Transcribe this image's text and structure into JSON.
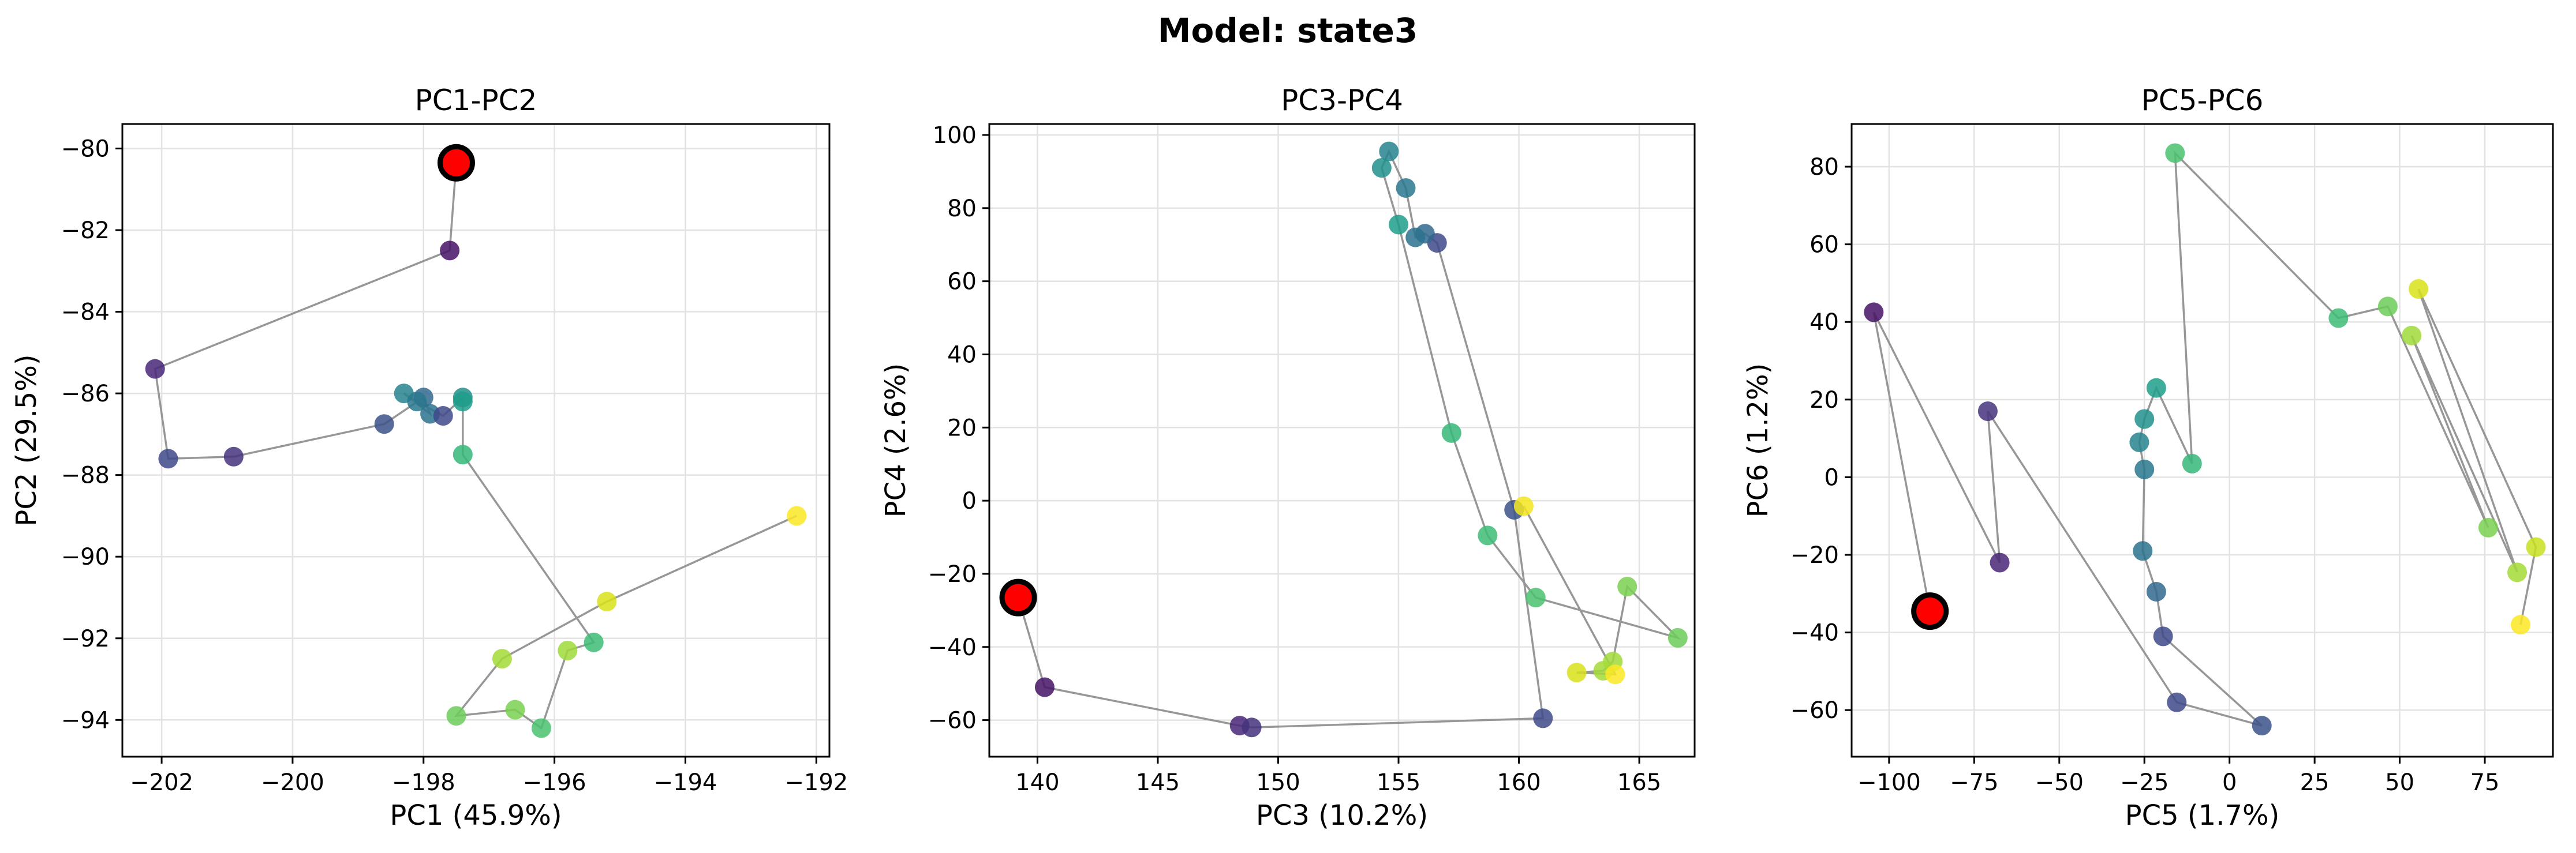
{
  "figure": {
    "title": "Model: state3"
  },
  "chart_data": [
    {
      "type": "scatter",
      "title": "PC1-PC2",
      "xlabel": "PC1 (45.9%)",
      "ylabel": "PC2 (29.5%)",
      "xlim": [
        -202.6,
        -191.8
      ],
      "ylim": [
        -94.9,
        -79.4
      ],
      "xticks": [
        -202,
        -200,
        -198,
        -196,
        -194,
        -192
      ],
      "yticks": [
        -94,
        -92,
        -90,
        -88,
        -86,
        -84,
        -82,
        -80
      ],
      "start": {
        "x": -197.5,
        "y": -80.35
      },
      "points": [
        {
          "x": -197.6,
          "y": -82.5,
          "c": "#471365"
        },
        {
          "x": -202.1,
          "y": -85.4,
          "c": "#482677"
        },
        {
          "x": -201.9,
          "y": -87.6,
          "c": "#3e4a89"
        },
        {
          "x": -200.9,
          "y": -87.55,
          "c": "#45337d"
        },
        {
          "x": -198.6,
          "y": -86.75,
          "c": "#3b528b"
        },
        {
          "x": -198.0,
          "y": -86.1,
          "c": "#31688e"
        },
        {
          "x": -197.9,
          "y": -86.5,
          "c": "#2c728e"
        },
        {
          "x": -198.3,
          "y": -86.0,
          "c": "#26828e"
        },
        {
          "x": -198.1,
          "y": -86.2,
          "c": "#2a788e"
        },
        {
          "x": -197.7,
          "y": -86.55,
          "c": "#3e4989"
        },
        {
          "x": -197.4,
          "y": -86.1,
          "c": "#21918c"
        },
        {
          "x": -197.4,
          "y": -86.2,
          "c": "#1f9e89"
        },
        {
          "x": -197.4,
          "y": -87.5,
          "c": "#35b779"
        },
        {
          "x": -195.4,
          "y": -92.1,
          "c": "#3dbc74"
        },
        {
          "x": -195.8,
          "y": -92.3,
          "c": "#a0da39"
        },
        {
          "x": -196.2,
          "y": -94.2,
          "c": "#4ac16d"
        },
        {
          "x": -196.6,
          "y": -93.75,
          "c": "#7ad151"
        },
        {
          "x": -197.5,
          "y": -93.9,
          "c": "#6ccd5a"
        },
        {
          "x": -196.8,
          "y": -92.5,
          "c": "#a5db36"
        },
        {
          "x": -195.2,
          "y": -91.1,
          "c": "#d8e219"
        },
        {
          "x": -192.3,
          "y": -89.0,
          "c": "#fde725"
        }
      ]
    },
    {
      "type": "scatter",
      "title": "PC3-PC4",
      "xlabel": "PC3 (10.2%)",
      "ylabel": "PC4 (2.6%)",
      "xlim": [
        138,
        167.3
      ],
      "ylim": [
        -70,
        103
      ],
      "xticks": [
        140,
        145,
        150,
        155,
        160,
        165
      ],
      "yticks": [
        -60,
        -40,
        -20,
        0,
        20,
        40,
        60,
        80,
        100
      ],
      "start": {
        "x": 139.2,
        "y": -26.5
      },
      "points": [
        {
          "x": 140.3,
          "y": -51,
          "c": "#471365"
        },
        {
          "x": 148.4,
          "y": -61.5,
          "c": "#482677"
        },
        {
          "x": 148.9,
          "y": -62,
          "c": "#45337d"
        },
        {
          "x": 161.0,
          "y": -59.5,
          "c": "#3e4a89"
        },
        {
          "x": 159.8,
          "y": -2.5,
          "c": "#3b528b"
        },
        {
          "x": 156.6,
          "y": 70.5,
          "c": "#3e4989"
        },
        {
          "x": 156.1,
          "y": 73,
          "c": "#31688e"
        },
        {
          "x": 155.7,
          "y": 72,
          "c": "#2c728e"
        },
        {
          "x": 155.3,
          "y": 85.5,
          "c": "#2a788e"
        },
        {
          "x": 154.6,
          "y": 95.5,
          "c": "#26828e"
        },
        {
          "x": 154.3,
          "y": 91,
          "c": "#21918c"
        },
        {
          "x": 155.0,
          "y": 75.5,
          "c": "#1f9e89"
        },
        {
          "x": 157.2,
          "y": 18.5,
          "c": "#35b779"
        },
        {
          "x": 158.7,
          "y": -9.5,
          "c": "#3dbc74"
        },
        {
          "x": 160.7,
          "y": -26.5,
          "c": "#4ac16d"
        },
        {
          "x": 166.6,
          "y": -37.5,
          "c": "#6ccd5a"
        },
        {
          "x": 164.5,
          "y": -23.5,
          "c": "#7ad151"
        },
        {
          "x": 163.9,
          "y": -44,
          "c": "#a0da39"
        },
        {
          "x": 163.5,
          "y": -46.5,
          "c": "#a5db36"
        },
        {
          "x": 162.4,
          "y": -47,
          "c": "#d8e219"
        },
        {
          "x": 164.0,
          "y": -47.5,
          "c": "#fde725"
        },
        {
          "x": 160.2,
          "y": -1.5,
          "c": "#f4e61e"
        }
      ]
    },
    {
      "type": "scatter",
      "title": "PC5-PC6",
      "xlabel": "PC5 (1.7%)",
      "ylabel": "PC6 (1.2%)",
      "xlim": [
        -111,
        95
      ],
      "ylim": [
        -72,
        91
      ],
      "xticks": [
        -100,
        -75,
        -50,
        -25,
        0,
        25,
        50,
        75
      ],
      "yticks": [
        -60,
        -40,
        -20,
        0,
        20,
        40,
        60,
        80
      ],
      "start": {
        "x": -88,
        "y": -34.5
      },
      "points": [
        {
          "x": -104.5,
          "y": 42.5,
          "c": "#471365"
        },
        {
          "x": -67.5,
          "y": -22,
          "c": "#482677"
        },
        {
          "x": -71,
          "y": 17,
          "c": "#45337d"
        },
        {
          "x": -15.5,
          "y": -58,
          "c": "#3e4a89"
        },
        {
          "x": 9.5,
          "y": -64,
          "c": "#3b528b"
        },
        {
          "x": -19.5,
          "y": -41,
          "c": "#3e4989"
        },
        {
          "x": -21.5,
          "y": -29.5,
          "c": "#31688e"
        },
        {
          "x": -25.5,
          "y": -19,
          "c": "#2c728e"
        },
        {
          "x": -25,
          "y": 2,
          "c": "#2a788e"
        },
        {
          "x": -26.5,
          "y": 9,
          "c": "#26828e"
        },
        {
          "x": -25,
          "y": 15,
          "c": "#21918c"
        },
        {
          "x": -21.5,
          "y": 23,
          "c": "#1f9e89"
        },
        {
          "x": -11,
          "y": 3.5,
          "c": "#35b779"
        },
        {
          "x": -16,
          "y": 83.5,
          "c": "#4ac16d"
        },
        {
          "x": 32,
          "y": 41,
          "c": "#3dbc74"
        },
        {
          "x": 46.5,
          "y": 44,
          "c": "#6ccd5a"
        },
        {
          "x": 76,
          "y": -13,
          "c": "#7ad151"
        },
        {
          "x": 53.5,
          "y": 36.5,
          "c": "#a0da39"
        },
        {
          "x": 84.5,
          "y": -24.5,
          "c": "#a5db36"
        },
        {
          "x": 55.5,
          "y": 48.5,
          "c": "#d8e219"
        },
        {
          "x": 90,
          "y": -18,
          "c": "#c8e020"
        },
        {
          "x": 85.5,
          "y": -38,
          "c": "#fde725"
        }
      ]
    }
  ]
}
